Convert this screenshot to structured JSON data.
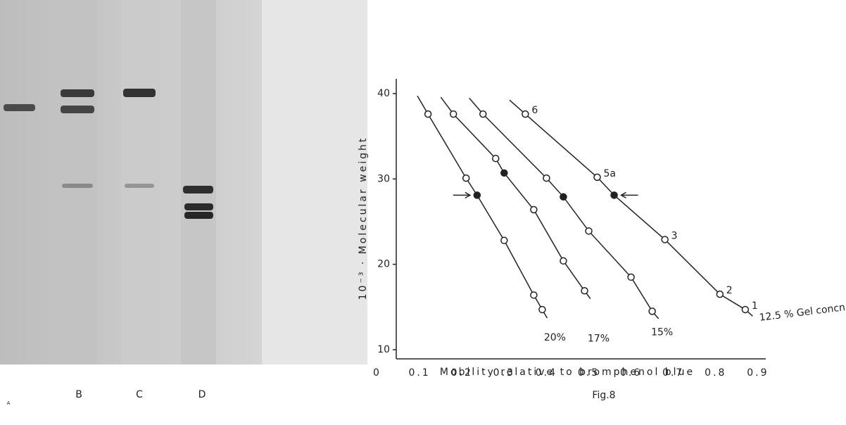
{
  "figure": {
    "lane_labels": [
      "A",
      "B",
      "C",
      "D"
    ],
    "caption": "Fig.8"
  },
  "chart_data": {
    "type": "line",
    "xlabel": "Mobility relative to bromphenol blue",
    "ylabel": "10⁻³ · Molecular weight",
    "xlim": [
      0,
      0.92
    ],
    "ylim": [
      9,
      41.5
    ],
    "xticks": [
      0,
      0.1,
      0.2,
      0.3,
      0.4,
      0.5,
      0.6,
      0.7,
      0.8,
      0.9
    ],
    "yticks": [
      10,
      20,
      30,
      40
    ],
    "color": "#222222",
    "series": [
      {
        "name": "20%",
        "x": [
          0.12,
          0.21,
          0.236,
          0.3,
          0.37,
          0.39
        ],
        "values": [
          37.6,
          30.1,
          28.1,
          22.8,
          16.4,
          14.7
        ],
        "filled": [
          false,
          false,
          true,
          false,
          false,
          false
        ]
      },
      {
        "name": "17%",
        "x": [
          0.18,
          0.28,
          0.3,
          0.37,
          0.44,
          0.49
        ],
        "values": [
          37.6,
          32.4,
          30.7,
          26.4,
          20.4,
          16.9
        ],
        "filled": [
          false,
          false,
          true,
          false,
          false,
          false
        ]
      },
      {
        "name": "15%",
        "x": [
          0.25,
          0.4,
          0.44,
          0.5,
          0.6,
          0.65
        ],
        "values": [
          37.6,
          30.1,
          27.9,
          23.9,
          18.5,
          14.5
        ],
        "filled": [
          false,
          false,
          true,
          false,
          false,
          false
        ]
      },
      {
        "name": "12.5 % Gel concn.",
        "x": [
          0.35,
          0.52,
          0.56,
          0.68,
          0.81,
          0.87
        ],
        "values": [
          37.6,
          30.2,
          28.1,
          22.9,
          16.5,
          14.7
        ],
        "filled": [
          false,
          false,
          true,
          false,
          false,
          false
        ],
        "point_labels": [
          "6",
          "5a",
          null,
          "3",
          "2",
          "1"
        ]
      }
    ]
  }
}
